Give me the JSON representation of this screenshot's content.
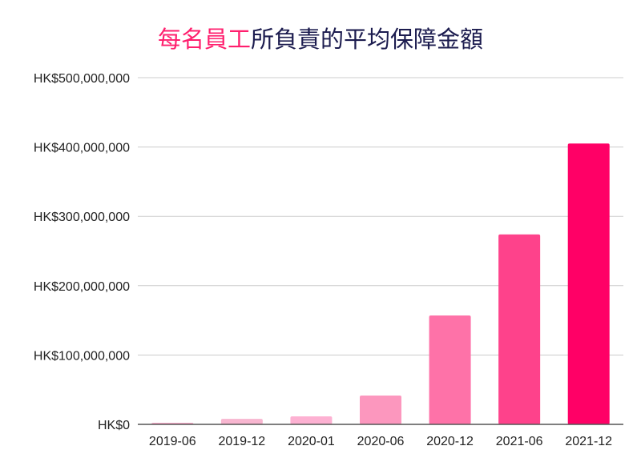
{
  "chart_data": {
    "type": "bar",
    "title_highlight": "每名員工",
    "title_rest": "所負責的平均保障金額",
    "categories": [
      "2019-06",
      "2019-12",
      "2020-01",
      "2020-06",
      "2020-12",
      "2021-06",
      "2021-12"
    ],
    "values": [
      2300000,
      8000000,
      11500000,
      41500000,
      157000000,
      274000000,
      405000000
    ],
    "colors": [
      "#f7a9c8",
      "#f8b6d0",
      "#fdb1d2",
      "#fc97be",
      "#fe72a8",
      "#fe428b",
      "#ff0066"
    ],
    "ylim": [
      0,
      500000000
    ],
    "yticks": [
      {
        "value": 0,
        "label": "HK$0"
      },
      {
        "value": 100000000,
        "label": "HK$100,000,000"
      },
      {
        "value": 200000000,
        "label": "HK$200,000,000"
      },
      {
        "value": 300000000,
        "label": "HK$300,000,000"
      },
      {
        "value": 400000000,
        "label": "HK$400,000,000"
      },
      {
        "value": 500000000,
        "label": "HK$500,000,000"
      }
    ],
    "xlabel": "",
    "ylabel": "",
    "grid": true,
    "legend": "none"
  }
}
